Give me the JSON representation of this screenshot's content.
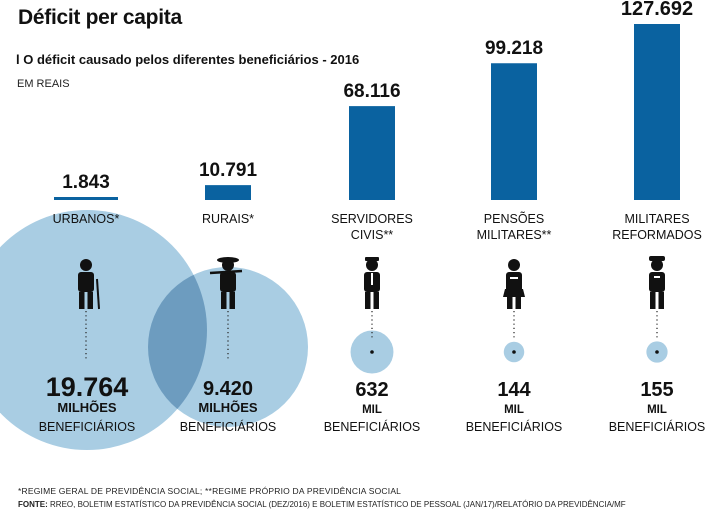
{
  "header": {
    "title": "Déficit per capita",
    "subtitle": "l O déficit causado pelos diferentes beneficiários - 2016",
    "units": "EM REAIS"
  },
  "footer": {
    "note": "*REGIME GERAL DE PREVIDÊNCIA SOCIAL; **REGIME PRÓPRIO DA PREVIDÊNCIA SOCIAL",
    "source_label": "FONTE:",
    "source_text": "RREO, BOLETIM ESTATÍSTICO DA PREVIDÊNCIA SOCIAL (DEZ/2016) E BOLETIM ESTATÍSTICO DE PESSOAL (JAN/17)/RELATÓRIO DA PREVIDÊNCIA/MF"
  },
  "colors": {
    "bar": "#0a62a0",
    "circle": "#a9cde3",
    "circle_overlap": "#6d9cbf",
    "icon": "#111111"
  },
  "chart_data": {
    "type": "bar",
    "title": "Déficit per capita",
    "subtitle": "l O déficit causado pelos diferentes beneficiários - 2016",
    "units": "EM REAIS",
    "categories": [
      "URBANOS*",
      "RURAIS*",
      "SERVIDORES CIVIS**",
      "PENSÕES MILITARES**",
      "MILITARES REFORMADOS"
    ],
    "category_lines": [
      [
        "URBANOS*"
      ],
      [
        "RURAIS*"
      ],
      [
        "SERVIDORES",
        "CIVIS**"
      ],
      [
        "PENSÕES",
        "MILITARES**"
      ],
      [
        "MILITARES",
        "REFORMADOS"
      ]
    ],
    "values": [
      1843,
      10791,
      68116,
      99218,
      127692
    ],
    "value_labels": [
      "1.843",
      "10.791",
      "68.116",
      "99.218",
      "127.692"
    ],
    "ylim": [
      0,
      127692
    ],
    "beneficiaries": {
      "values": [
        19764000,
        9420000,
        632000,
        144000,
        155000
      ],
      "numbers": [
        "19.764",
        "9.420",
        "632",
        "144",
        "155"
      ],
      "units": [
        "MILHÕES",
        "MILHÕES",
        "MIL",
        "MIL",
        "MIL"
      ],
      "caption": "BENEFICIÁRIOS"
    },
    "icons": [
      "elderly-man-with-cane-icon",
      "farmer-with-hat-icon",
      "civil-servant-icon",
      "military-widow-icon",
      "military-officer-icon"
    ]
  }
}
